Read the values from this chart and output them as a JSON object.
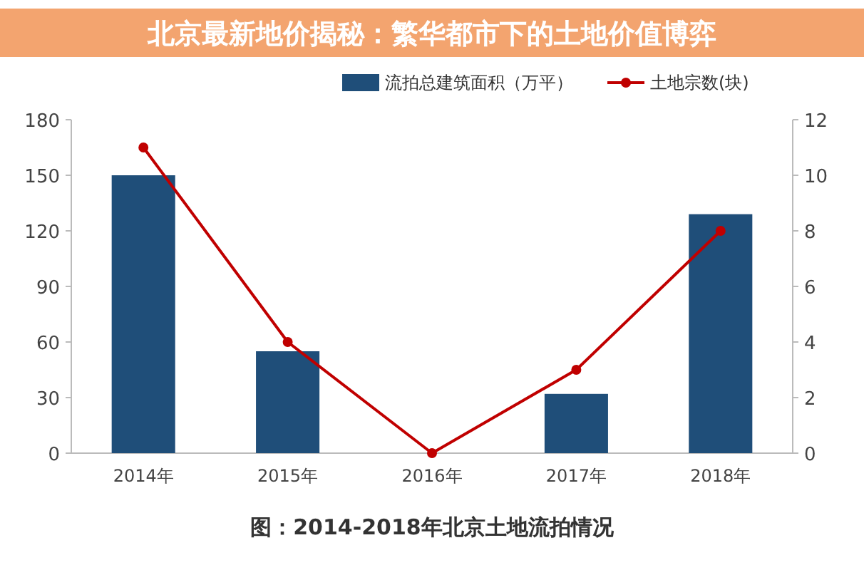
{
  "chart_data": {
    "type": "bar",
    "title": "北京最新地价揭秘：繁华都市下的土地价值博弈",
    "categories": [
      "2014年",
      "2015年",
      "2016年",
      "2017年",
      "2018年"
    ],
    "series": [
      {
        "name": "流拍总建筑面积（万平）",
        "color": "#1f4e79",
        "values": [
          150,
          55,
          0,
          32,
          129
        ]
      },
      {
        "name": "土地宗数(块)",
        "type": "line",
        "axis": "y2",
        "color": "#c00000",
        "marker": "circle",
        "values": [
          11,
          4,
          0,
          3,
          8
        ]
      }
    ],
    "ylim": [
      0,
      180
    ],
    "yticks": [
      0,
      30,
      60,
      90,
      120,
      150,
      180
    ],
    "y2lim": [
      0,
      12
    ],
    "y2ticks": [
      0,
      2,
      4,
      6,
      8,
      10,
      12
    ],
    "legend": "top",
    "grid": false,
    "annotations": [
      "图：2014-2018年北京土地流拍情况"
    ]
  }
}
